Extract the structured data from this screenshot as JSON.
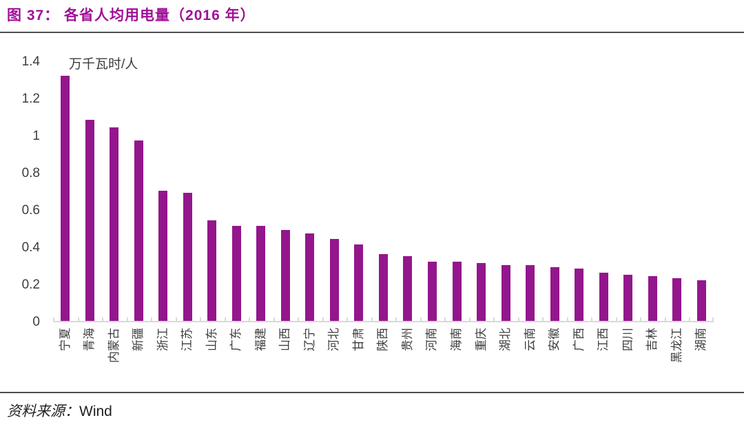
{
  "figure": {
    "title": "图 37：  各省人均用电量（2016 年）",
    "unit_label": "万千瓦时/人",
    "source_label": "资料来源：",
    "source_value": "Wind"
  },
  "colors": {
    "bar": "#94168C",
    "title": "#A01097",
    "axis_text": "#3D3D3D",
    "axis_line": "#D9D9D9",
    "divider": "#4D4D4D"
  },
  "chart_data": {
    "type": "bar",
    "title": "各省人均用电量（2016 年）",
    "ylabel": "万千瓦时/人",
    "xlabel": "",
    "categories": [
      "宁夏",
      "青海",
      "内蒙古",
      "新疆",
      "浙江",
      "江苏",
      "山东",
      "广东",
      "福建",
      "山西",
      "辽宁",
      "河北",
      "甘肃",
      "陕西",
      "贵州",
      "河南",
      "海南",
      "重庆",
      "湖北",
      "云南",
      "安徽",
      "广西",
      "江西",
      "四川",
      "吉林",
      "黑龙江",
      "湖南"
    ],
    "values": [
      1.32,
      1.08,
      1.04,
      0.97,
      0.7,
      0.69,
      0.54,
      0.51,
      0.51,
      0.49,
      0.47,
      0.44,
      0.41,
      0.36,
      0.35,
      0.32,
      0.32,
      0.31,
      0.3,
      0.3,
      0.29,
      0.28,
      0.26,
      0.25,
      0.24,
      0.23,
      0.22
    ],
    "ylim": [
      0,
      1.4
    ],
    "yticks": [
      0,
      0.2,
      0.4,
      0.6,
      0.8,
      1,
      1.2,
      1.4
    ],
    "grid": false,
    "legend": null,
    "bar_orientation": "vertical",
    "x_label_rotation": -90,
    "source": "Wind"
  }
}
